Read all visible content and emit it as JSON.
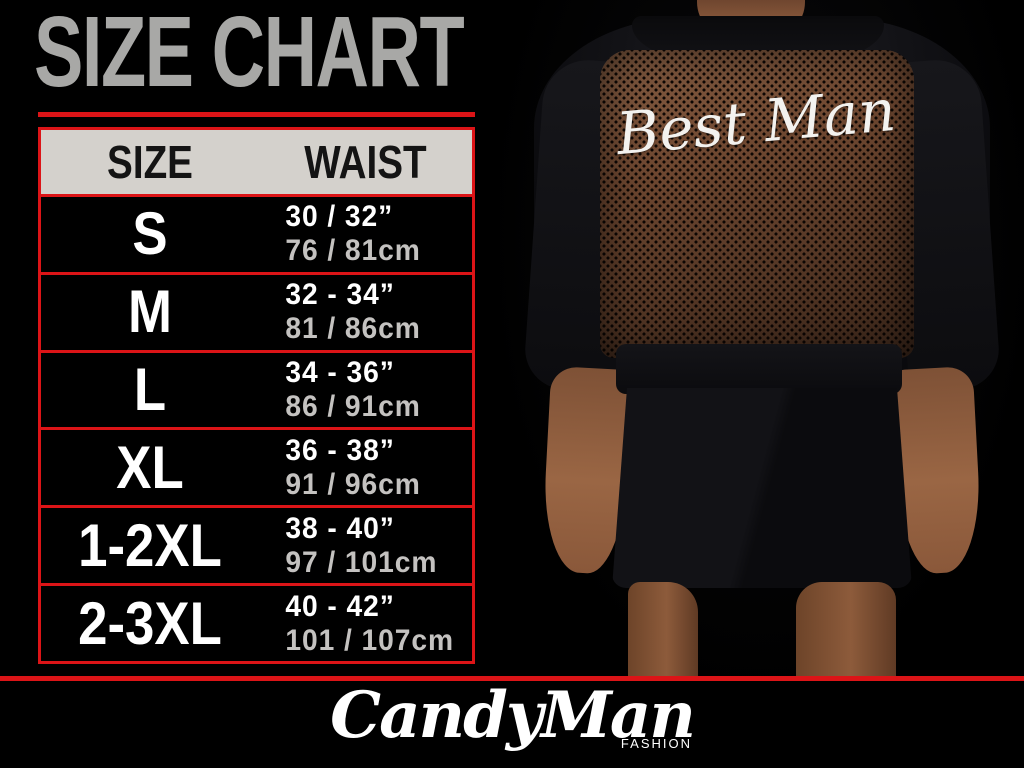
{
  "colors": {
    "background": "#000000",
    "accent_red": "#dc1417",
    "title_gray": "#a8a8a6",
    "header_bg": "#d4d1cc",
    "cm_gray": "#c4c2c0",
    "mesh_brown": "#6e4730"
  },
  "title": "SIZE CHART",
  "size_table": {
    "header": {
      "size": "SIZE",
      "waist": "WAIST"
    },
    "rows": [
      {
        "size": "S",
        "inches": "30 / 32”",
        "cm": "76 / 81cm"
      },
      {
        "size": "M",
        "inches": "32 - 34”",
        "cm": "81 / 86cm"
      },
      {
        "size": "L",
        "inches": "34 - 36”",
        "cm": "86 / 91cm"
      },
      {
        "size": "XL",
        "inches": "36 - 38”",
        "cm": "91 / 96cm"
      },
      {
        "size": "1-2XL",
        "inches": "38 - 40”",
        "cm": "97 / 101cm"
      },
      {
        "size": "2-3XL",
        "inches": "40 - 42”",
        "cm": "101 / 107cm"
      }
    ]
  },
  "photo": {
    "print_text": "Best Man"
  },
  "logo": {
    "brand": "CandyMan",
    "tagline": "FASHION"
  }
}
